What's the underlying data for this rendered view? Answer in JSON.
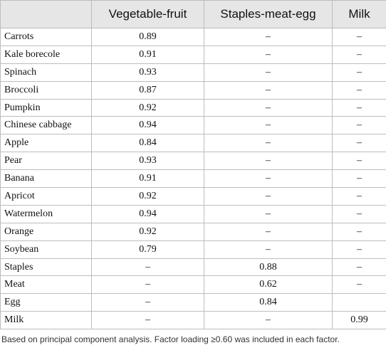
{
  "table": {
    "header": [
      "Vegetable-fruit",
      "Staples-meat-egg",
      "Milk"
    ],
    "rows": [
      [
        "Carrots",
        "0.89",
        "–",
        "–"
      ],
      [
        "Kale borecole",
        "0.91",
        "–",
        "–"
      ],
      [
        "Spinach",
        "0.93",
        "–",
        "–"
      ],
      [
        "Broccoli",
        "0.87",
        "–",
        "–"
      ],
      [
        "Pumpkin",
        "0.92",
        "–",
        "–"
      ],
      [
        "Chinese cabbage",
        "0.94",
        "–",
        "–"
      ],
      [
        "Apple",
        "0.84",
        "–",
        "–"
      ],
      [
        "Pear",
        "0.93",
        "–",
        "–"
      ],
      [
        "Banana",
        "0.91",
        "–",
        "–"
      ],
      [
        "Apricot",
        "0.92",
        "–",
        "–"
      ],
      [
        "Watermelon",
        "0.94",
        "–",
        "–"
      ],
      [
        "Orange",
        "0.92",
        "–",
        "–"
      ],
      [
        "Soybean",
        "0.79",
        "–",
        "–"
      ],
      [
        "Staples",
        "–",
        "0.88",
        "–"
      ],
      [
        "Meat",
        "–",
        "0.62",
        "–"
      ],
      [
        "Egg",
        "–",
        "0.84"
      ],
      [
        "Milk",
        "–",
        "–",
        "0.99"
      ]
    ]
  },
  "footnote": "Based on principal component analysis. Factor loading ≥0.60 was included in each factor."
}
